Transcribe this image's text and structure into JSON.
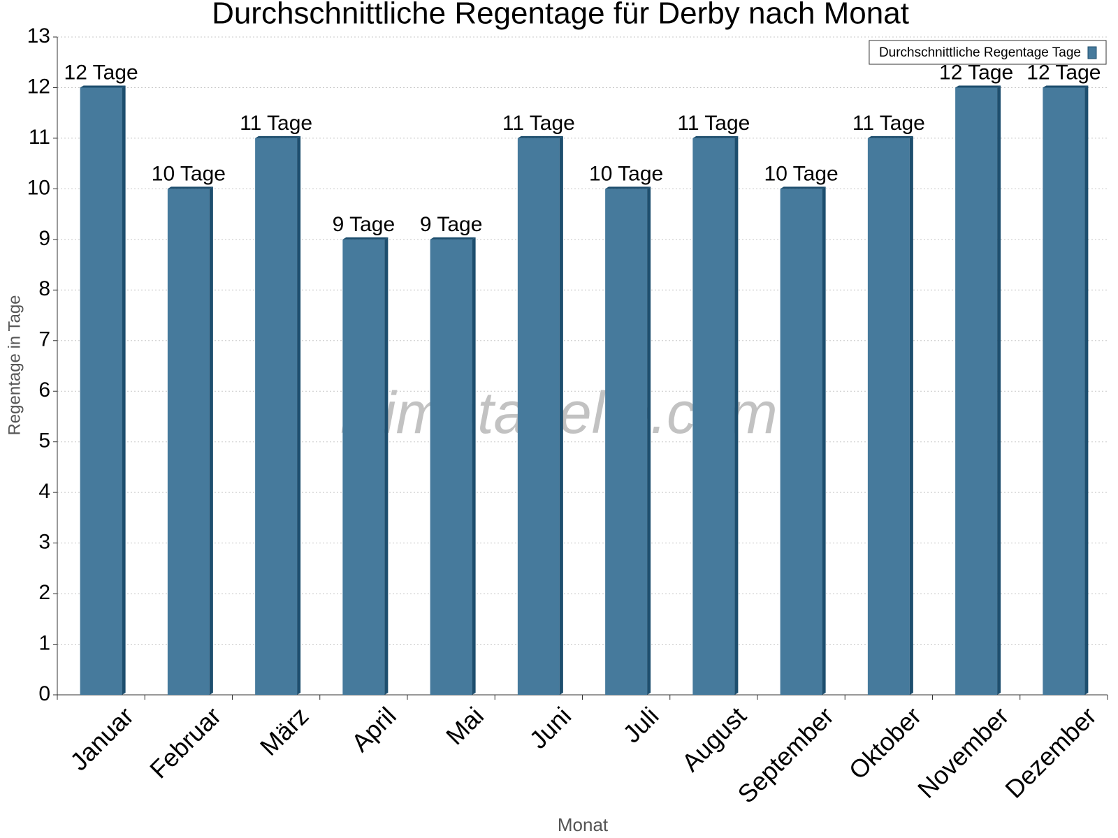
{
  "chart_data": {
    "type": "bar",
    "title": "Durchschnittliche Regentage für Derby nach Monat",
    "watermark": "klimatabelle.com",
    "x_label": "Monat",
    "y_label": "Regentage in Tage",
    "categories": [
      "Januar",
      "Februar",
      "März",
      "April",
      "Mai",
      "Juni",
      "Juli",
      "August",
      "September",
      "Oktober",
      "November",
      "Dezember"
    ],
    "series": [
      {
        "name": "Durchschnittliche Regentage Tage",
        "color": "#467a9c",
        "values": [
          12,
          10,
          11,
          9,
          9,
          11,
          10,
          11,
          10,
          11,
          12,
          12
        ],
        "value_labels": [
          "12 Tage",
          "10 Tage",
          "11 Tage",
          "9 Tage",
          "9 Tage",
          "11 Tage",
          "10 Tage",
          "11 Tage",
          "10 Tage",
          "11 Tage",
          "12 Tage",
          "12 Tage"
        ]
      }
    ],
    "ylim": [
      0,
      13
    ],
    "yticks": [
      0,
      1,
      2,
      3,
      4,
      5,
      6,
      7,
      8,
      9,
      10,
      11,
      12,
      13
    ],
    "grid": true,
    "legend": "top-right"
  }
}
